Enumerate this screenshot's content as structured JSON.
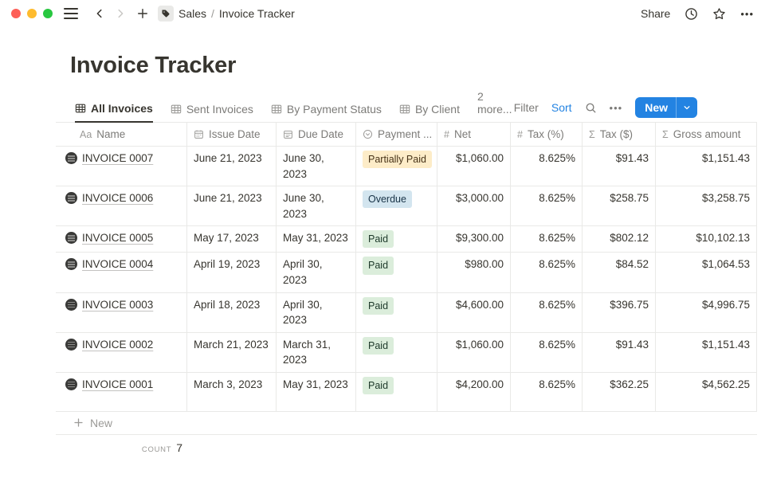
{
  "window": {
    "breadcrumb": {
      "section": "Sales",
      "separator": "/",
      "page": "Invoice Tracker"
    },
    "share_label": "Share",
    "more_dots": "•••"
  },
  "page": {
    "title": "Invoice Tracker"
  },
  "views": {
    "tabs": [
      {
        "label": "All Invoices"
      },
      {
        "label": "Sent Invoices"
      },
      {
        "label": "By Payment Status"
      },
      {
        "label": "By Client"
      }
    ],
    "more_label": "2 more...",
    "toolbar": {
      "filter": "Filter",
      "sort": "Sort",
      "more": "•••",
      "new_label": "New"
    }
  },
  "colors": {
    "accent_blue": "#2383e2",
    "badges": {
      "yellow": {
        "bg": "#fdecc8",
        "text": "#473318"
      },
      "blue": {
        "bg": "#d3e5ef",
        "text": "#183347"
      },
      "green": {
        "bg": "#dbeddb",
        "text": "#1c3829"
      }
    }
  },
  "table": {
    "columns": [
      {
        "icon": "text-icon",
        "label": "Name"
      },
      {
        "icon": "calendar-icon",
        "label": "Issue Date"
      },
      {
        "icon": "calendar-icon",
        "label": "Due Date"
      },
      {
        "icon": "select-icon",
        "label": "Payment ..."
      },
      {
        "icon": "number-icon",
        "label": "Net"
      },
      {
        "icon": "number-icon",
        "label": "Tax (%)"
      },
      {
        "icon": "sum-icon",
        "label": "Tax ($)"
      },
      {
        "icon": "sum-icon",
        "label": "Gross amount"
      }
    ],
    "rows": [
      {
        "name": "INVOICE 0007",
        "issue_date": "June 21, 2023",
        "due_date": "June 30, 2023",
        "status": "Partially Paid",
        "status_color": "yellow",
        "net": "$1,060.00",
        "tax_pct": "8.625%",
        "tax_amt": "$91.43",
        "gross": "$1,151.43",
        "tall": false
      },
      {
        "name": "INVOICE 0006",
        "issue_date": "June 21, 2023",
        "due_date": "June 30, 2023",
        "status": "Overdue",
        "status_color": "blue",
        "net": "$3,000.00",
        "tax_pct": "8.625%",
        "tax_amt": "$258.75",
        "tax": "",
        "gross": "$3,258.75",
        "tall": true
      },
      {
        "name": "INVOICE 0005",
        "issue_date": "May 17, 2023",
        "due_date": "May 31, 2023",
        "status": "Paid",
        "status_color": "green",
        "net": "$9,300.00",
        "tax_pct": "8.625%",
        "tax_amt": "$802.12",
        "gross": "$10,102.13",
        "tall": false
      },
      {
        "name": "INVOICE 0004",
        "issue_date": "April 19, 2023",
        "due_date": "April 30, 2023",
        "status": "Paid",
        "status_color": "green",
        "net": "$980.00",
        "tax_pct": "8.625%",
        "tax_amt": "$84.52",
        "gross": "$1,064.53",
        "tall": true
      },
      {
        "name": "INVOICE 0003",
        "issue_date": "April 18, 2023",
        "due_date": "April 30, 2023",
        "status": "Paid",
        "status_color": "green",
        "net": "$4,600.00",
        "tax_pct": "8.625%",
        "tax_amt": "$396.75",
        "gross": "$4,996.75",
        "tall": false
      },
      {
        "name": "INVOICE 0002",
        "issue_date": "March 21, 2023",
        "due_date": "March 31, 2023",
        "status": "Paid",
        "status_color": "green",
        "net": "$1,060.00",
        "tax_pct": "8.625%",
        "tax_amt": "$91.43",
        "gross": "$1,151.43",
        "tall": true
      },
      {
        "name": "INVOICE 0001",
        "issue_date": "March 3, 2023",
        "due_date": "May 31, 2023",
        "status": "Paid",
        "status_color": "green",
        "net": "$4,200.00",
        "tax_pct": "8.625%",
        "tax_amt": "$362.25",
        "gross": "$4,562.25",
        "tall": true
      }
    ],
    "new_row_label": "New",
    "footer": {
      "label": "Count",
      "value": "7"
    }
  }
}
